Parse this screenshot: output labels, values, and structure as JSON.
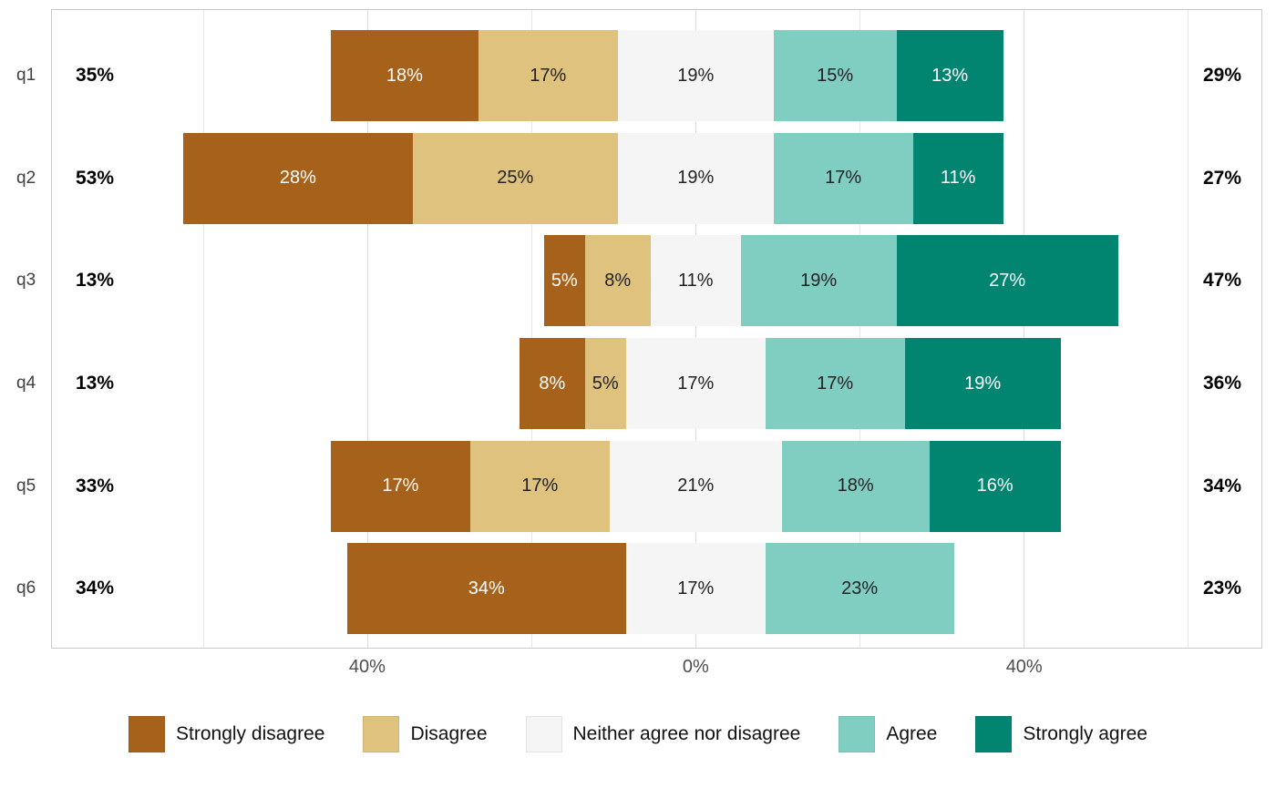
{
  "chart_data": {
    "type": "diverging_stacked_bar",
    "title": "",
    "categories": [
      "Strongly disagree",
      "Disagree",
      "Neither agree nor disagree",
      "Agree",
      "Strongly agree"
    ],
    "colors": [
      "#a6611a",
      "#dfc27d",
      "#f5f5f5",
      "#80cdc1",
      "#018571"
    ],
    "text_colors": [
      "#ffffff",
      "#222222",
      "#222222",
      "#222222",
      "#ffffff"
    ],
    "neutral_centered_on_zero": true,
    "axis_range": [
      -78.5,
      69
    ],
    "gridlines": [
      -60,
      -40,
      -20,
      0,
      20,
      40,
      60
    ],
    "x_ticks": [
      {
        "value": -40,
        "label": "40%"
      },
      {
        "value": 0,
        "label": "0%"
      },
      {
        "value": 40,
        "label": "40%"
      }
    ],
    "rows": [
      {
        "question": "q1",
        "values": [
          18,
          17,
          19,
          15,
          13
        ],
        "labels": [
          "18%",
          "17%",
          "19%",
          "15%",
          "13%"
        ],
        "left_total": "35%",
        "right_total": "29%"
      },
      {
        "question": "q2",
        "values": [
          28,
          25,
          19,
          17,
          11
        ],
        "labels": [
          "28%",
          "25%",
          "19%",
          "17%",
          "11%"
        ],
        "left_total": "53%",
        "right_total": "27%"
      },
      {
        "question": "q3",
        "values": [
          5,
          8,
          11,
          19,
          27
        ],
        "labels": [
          "5%",
          "8%",
          "11%",
          "19%",
          "27%"
        ],
        "left_total": "13%",
        "right_total": "47%"
      },
      {
        "question": "q4",
        "values": [
          8,
          5,
          17,
          17,
          19
        ],
        "labels": [
          "8%",
          "5%",
          "17%",
          "17%",
          "19%"
        ],
        "left_total": "13%",
        "right_total": "36%"
      },
      {
        "question": "q5",
        "values": [
          17,
          17,
          21,
          18,
          16
        ],
        "labels": [
          "17%",
          "17%",
          "21%",
          "18%",
          "16%"
        ],
        "left_total": "33%",
        "right_total": "34%"
      },
      {
        "question": "q6",
        "values": [
          34,
          0,
          17,
          23,
          0
        ],
        "labels": [
          "34%",
          "",
          "17%",
          "23%",
          ""
        ],
        "left_total": "34%",
        "right_total": "23%"
      }
    ]
  },
  "legend": {
    "items": [
      {
        "label": "Strongly disagree",
        "color": "#a6611a"
      },
      {
        "label": "Disagree",
        "color": "#dfc27d"
      },
      {
        "label": "Neither agree nor disagree",
        "color": "#f5f5f5"
      },
      {
        "label": "Agree",
        "color": "#80cdc1"
      },
      {
        "label": "Strongly agree",
        "color": "#018571"
      }
    ]
  }
}
